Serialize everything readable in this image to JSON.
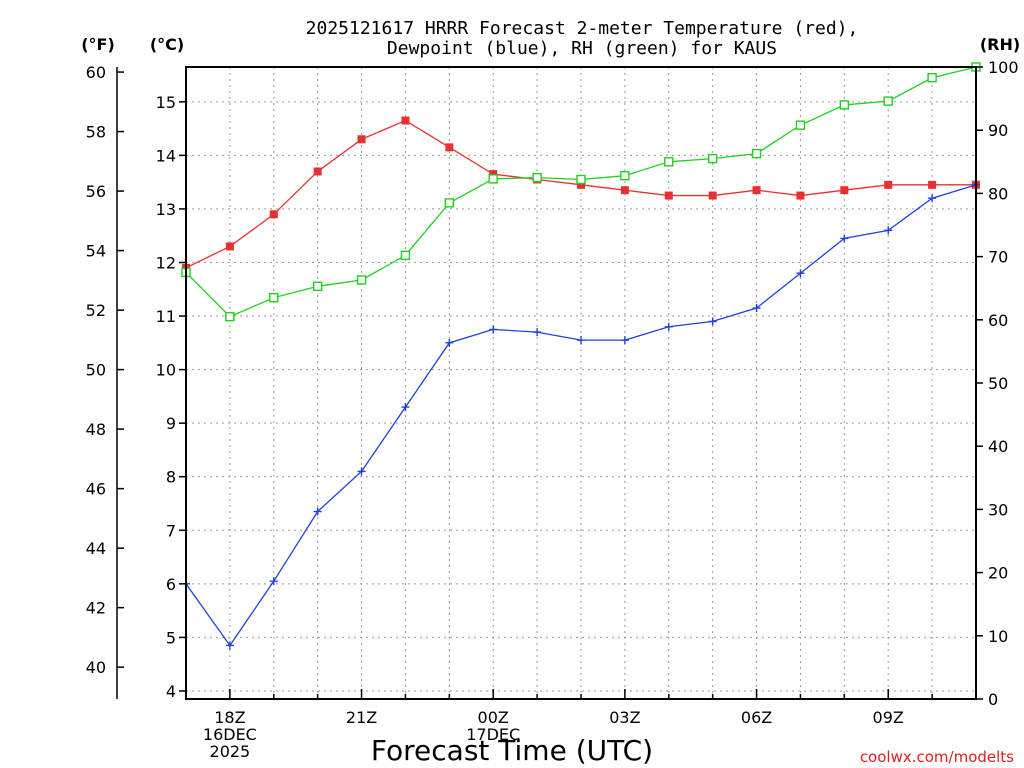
{
  "chart_data": {
    "type": "line",
    "title": [
      "2025121617 HRRR Forecast 2-meter Temperature (red),",
      "Dewpoint (blue), RH (green) for KAUS"
    ],
    "xlabel": "Forecast Time (UTC)",
    "credit": "coolwx.com/modelts",
    "axes": {
      "fahrenheit": {
        "unit_label": "(°F)",
        "ticks": [
          40,
          42,
          44,
          46,
          48,
          50,
          52,
          54,
          56,
          58,
          60
        ]
      },
      "celsius": {
        "unit_label": "(°C)",
        "ylim": [
          3.85,
          15.65
        ],
        "ticks": [
          4,
          5,
          6,
          7,
          8,
          9,
          10,
          11,
          12,
          13,
          14,
          15
        ]
      },
      "rh": {
        "unit_label": "(RH)",
        "ylim": [
          0,
          100
        ],
        "ticks": [
          0,
          10,
          20,
          30,
          40,
          50,
          60,
          70,
          80,
          90,
          100
        ]
      }
    },
    "x_hours": [
      17,
      18,
      19,
      20,
      21,
      22,
      23,
      24,
      25,
      26,
      27,
      28,
      29,
      30,
      31,
      32,
      33,
      34,
      35
    ],
    "x_ticks": [
      {
        "hour": 18,
        "lines": [
          "18Z",
          "16DEC",
          "2025"
        ]
      },
      {
        "hour": 21,
        "lines": [
          "21Z"
        ]
      },
      {
        "hour": 24,
        "lines": [
          "00Z",
          "17DEC"
        ]
      },
      {
        "hour": 27,
        "lines": [
          "03Z"
        ]
      },
      {
        "hour": 30,
        "lines": [
          "06Z"
        ]
      },
      {
        "hour": 33,
        "lines": [
          "09Z"
        ]
      }
    ],
    "grid": true,
    "series": [
      {
        "name": "Temperature",
        "color": "#e83030",
        "axis": "celsius",
        "marker": "filled-square",
        "values": [
          11.9,
          12.3,
          12.9,
          13.7,
          14.3,
          14.65,
          14.15,
          13.65,
          13.55,
          13.45,
          13.35,
          13.25,
          13.25,
          13.35,
          13.25,
          13.35,
          13.45,
          13.45,
          13.45
        ]
      },
      {
        "name": "Dewpoint",
        "color": "#2040e0",
        "axis": "celsius",
        "marker": "plus",
        "values": [
          6.0,
          4.85,
          6.05,
          7.35,
          8.1,
          9.3,
          10.5,
          10.75,
          10.7,
          10.55,
          10.55,
          10.8,
          10.9,
          11.15,
          11.8,
          12.45,
          12.6,
          13.2,
          13.45
        ]
      },
      {
        "name": "RH",
        "color": "#20d020",
        "axis": "rh",
        "marker": "open-square",
        "values": [
          67.5,
          60.5,
          63.5,
          65.3,
          66.3,
          70.2,
          78.5,
          82.3,
          82.5,
          82.2,
          82.8,
          85.0,
          85.5,
          86.3,
          90.8,
          94.0,
          94.6,
          98.3,
          100.0
        ]
      }
    ]
  }
}
